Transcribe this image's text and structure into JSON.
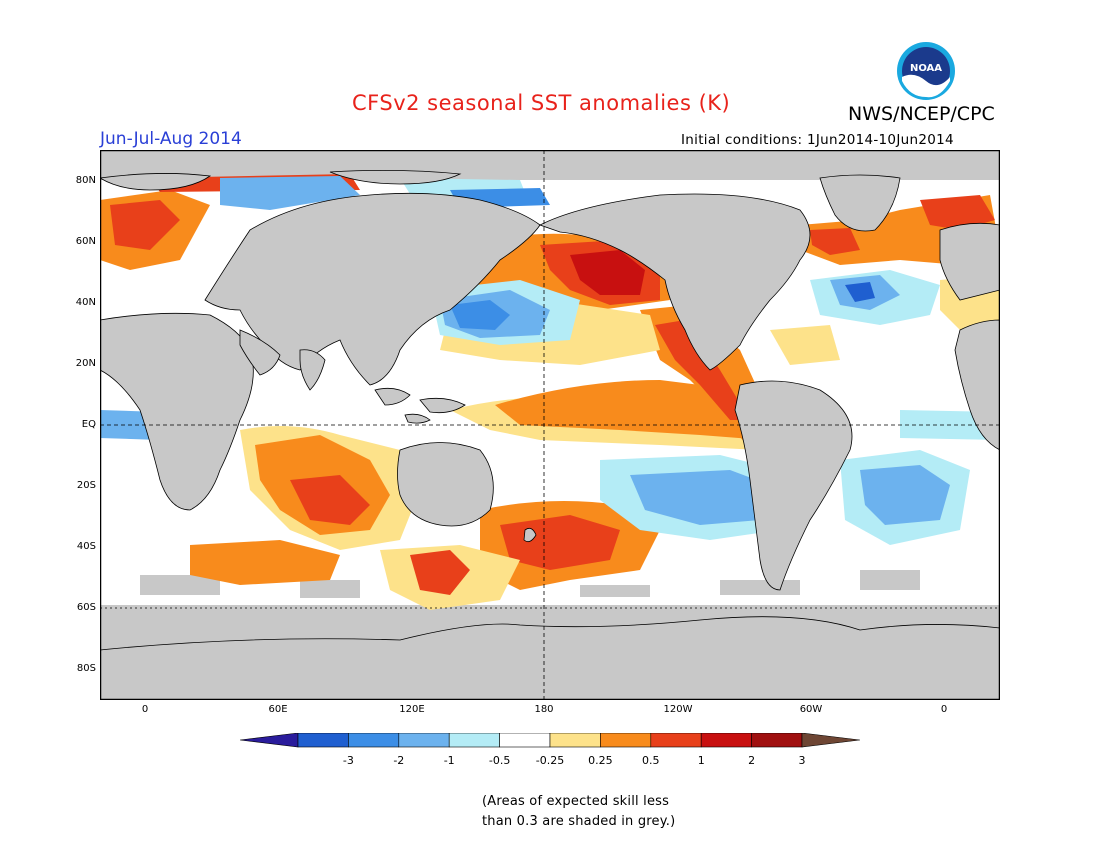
{
  "header": {
    "title": "CFSv2 seasonal SST anomalies (K)",
    "org": "NWS/NCEP/CPC",
    "season": "Jun-Jul-Aug 2014",
    "initial_conditions": "Initial conditions: 1Jun2014-10Jun2014"
  },
  "logo": {
    "text": "NOAA",
    "icon": "noaa-logo-icon"
  },
  "axes": {
    "lat_labels": [
      "80N",
      "60N",
      "40N",
      "20N",
      "EQ",
      "20S",
      "40S",
      "60S",
      "80S"
    ],
    "lon_labels": [
      "0",
      "60E",
      "120E",
      "180",
      "120W",
      "60W",
      "0"
    ]
  },
  "colorbar": {
    "labels": [
      "-3",
      "-2",
      "-1",
      "-0.5",
      "-0.25",
      "0.25",
      "0.5",
      "1",
      "2",
      "3"
    ],
    "colors": [
      "#2a1c9c",
      "#1f5fd0",
      "#3c8ee6",
      "#6cb2ee",
      "#b4ecf6",
      "#ffffff",
      "#fde28a",
      "#f88b1c",
      "#e8401a",
      "#c81010",
      "#a01010",
      "#6e4634"
    ]
  },
  "note": {
    "line1": "(Areas of expected skill less",
    "line2": "than 0.3 are shaded in grey.)"
  },
  "colors": {
    "land": "#c8c8c8",
    "no_skill_grey": "#c8c8c8",
    "title_red": "#e8221b",
    "season_blue": "#2a3fd6"
  }
}
